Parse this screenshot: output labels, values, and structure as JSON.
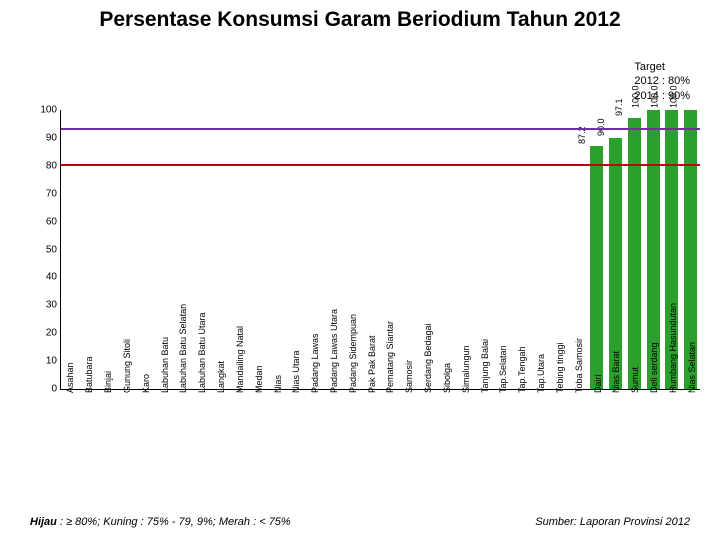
{
  "title": "Persentase Konsumsi Garam Beriodium Tahun 2012",
  "target_box": {
    "line1": "Target",
    "line2": "2012 : 80%",
    "line3": "2014 : 90%"
  },
  "chart": {
    "type": "bar",
    "ylim": [
      0,
      100
    ],
    "ytick_step": 10,
    "background_color": "#ffffff",
    "bar_color_default": "#2ca02c",
    "axis_color": "#000000",
    "reference_lines": [
      {
        "y": 93,
        "color": "#7030a0"
      },
      {
        "y": 80,
        "color": "#c00000"
      }
    ],
    "categories": [
      "Asahan",
      "Batubara",
      "Binjai",
      "Gunung Sitoli",
      "Karo",
      "Labuhan Batu",
      "Labuhan Batu Selatan",
      "Labuhan Batu Utara",
      "Langkat",
      "Mandailing Natal",
      "Medan",
      "Nias",
      "Nias Utara",
      "Padang Lawas",
      "Padang Lawas Utara",
      "Padang Sidempuan",
      "Pak Pak Barat",
      "Pematang Siantar",
      "Samosir",
      "Serdang Bedagai",
      "Sibolga",
      "Simalungun",
      "Tanjung Balai",
      "Tap.Selatan",
      "Tap.Tengah",
      "Tap.Utara",
      "Tebing tinggi",
      "Toba Samosir",
      "Dairi",
      "Nias Barat",
      "Sumut",
      "Deli serdang",
      "Humbang Hasundutan",
      "Nias Selatan"
    ],
    "values": [
      0,
      0,
      0,
      0,
      0,
      0,
      0,
      0,
      0,
      0,
      0,
      0,
      0,
      0,
      0,
      0,
      0,
      0,
      0,
      0,
      0,
      0,
      0,
      0,
      0,
      0,
      0,
      0,
      87.2,
      90.0,
      97.1,
      100.0,
      100.0,
      100.0
    ],
    "show_value_labels_for_nonzero": true,
    "value_label_fontsize": 9,
    "xlabel_fontsize": 9,
    "ylabel_fontsize": 10
  },
  "legend": {
    "text_prefix": "Hijau",
    "text_rest": "   : ≥ 80%; Kuning  : 75% - 79, 9%; Merah   : < 75%"
  },
  "source": "Sumber: Laporan Provinsi 2012"
}
